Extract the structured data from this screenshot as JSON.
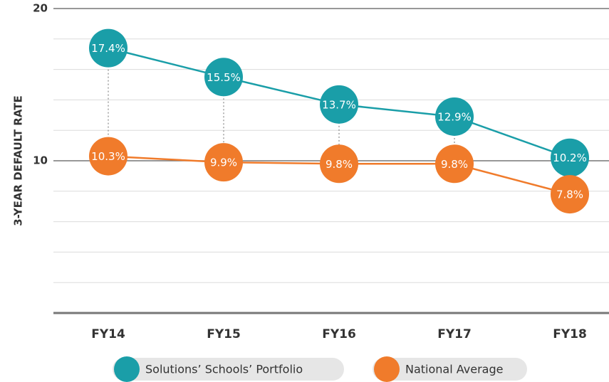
{
  "chart_data": {
    "type": "line",
    "y_label": "3-YEAR DEFAULT RATE",
    "categories": [
      "FY14",
      "FY15",
      "FY16",
      "FY17",
      "FY18"
    ],
    "series": [
      {
        "name": "Solutions’ Schools’ Portfolio",
        "color": "#1a9ea8",
        "values": [
          17.4,
          15.5,
          13.7,
          12.9,
          10.2
        ],
        "value_labels": [
          "17.4%",
          "15.5%",
          "13.7%",
          "12.9%",
          "10.2%"
        ]
      },
      {
        "name": "National Average",
        "color": "#f07b2b",
        "values": [
          10.3,
          9.9,
          9.8,
          9.8,
          7.8
        ],
        "value_labels": [
          "10.3%",
          "9.9%",
          "9.8%",
          "9.8%",
          "7.8%"
        ]
      }
    ],
    "ylim": [
      0,
      20
    ],
    "yticks": [
      10,
      20
    ],
    "minor_yticks": [
      2,
      4,
      6,
      8,
      12,
      14,
      16,
      18
    ],
    "grid": true
  }
}
